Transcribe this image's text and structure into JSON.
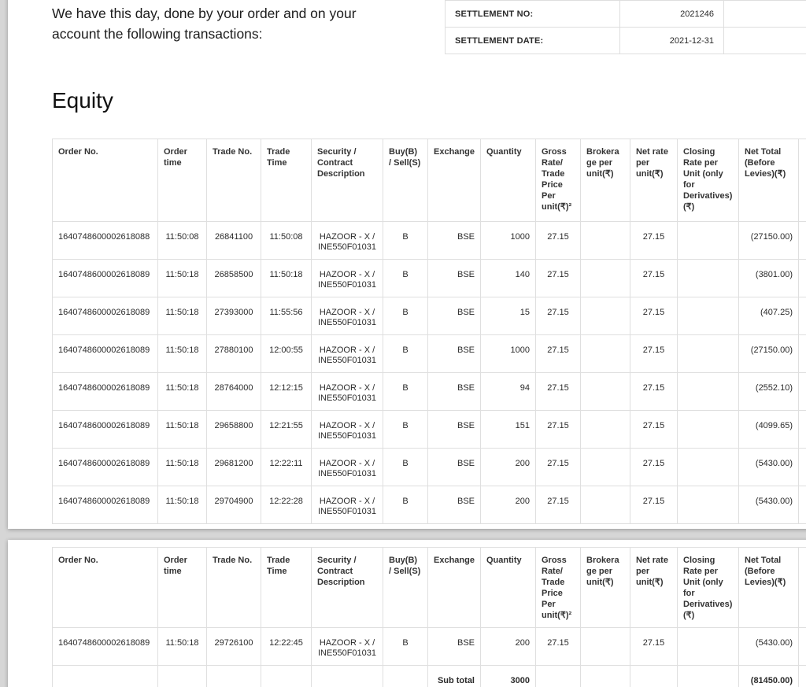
{
  "intro_text": "We have this day, done by your order and on your account the following transactions:",
  "section_title": "Equity",
  "settlement": {
    "rows": [
      {
        "label": "SETTLEMENT NO:",
        "value": "2021246"
      },
      {
        "label": "SETTLEMENT DATE:",
        "value": "2021-12-31"
      }
    ]
  },
  "transactions": {
    "headers": [
      "Order No.",
      "Order time",
      "Trade No.",
      "Trade Time",
      "Security / Contract Description",
      "Buy(B) / Sell(S)",
      "Exchange",
      "Quantity",
      "Gross Rate/ Trade Price Per unit(₹)²",
      "Brokerage per unit(₹)",
      "Net rate per unit(₹)",
      "Closing Rate per Unit (only for Derivatives) (₹)",
      "Net Total (Before Levies)(₹)"
    ],
    "page1_rows": [
      [
        "1640748600002618088",
        "11:50:08",
        "26841100",
        "11:50:08",
        "HAZOOR - X /\nINE550F01031",
        "B",
        "BSE",
        "1000",
        "27.15",
        "",
        "27.15",
        "",
        "(27150.00)"
      ],
      [
        "1640748600002618089",
        "11:50:18",
        "26858500",
        "11:50:18",
        "HAZOOR - X /\nINE550F01031",
        "B",
        "BSE",
        "140",
        "27.15",
        "",
        "27.15",
        "",
        "(3801.00)"
      ],
      [
        "1640748600002618089",
        "11:50:18",
        "27393000",
        "11:55:56",
        "HAZOOR - X /\nINE550F01031",
        "B",
        "BSE",
        "15",
        "27.15",
        "",
        "27.15",
        "",
        "(407.25)"
      ],
      [
        "1640748600002618089",
        "11:50:18",
        "27880100",
        "12:00:55",
        "HAZOOR - X /\nINE550F01031",
        "B",
        "BSE",
        "1000",
        "27.15",
        "",
        "27.15",
        "",
        "(27150.00)"
      ],
      [
        "1640748600002618089",
        "11:50:18",
        "28764000",
        "12:12:15",
        "HAZOOR - X /\nINE550F01031",
        "B",
        "BSE",
        "94",
        "27.15",
        "",
        "27.15",
        "",
        "(2552.10)"
      ],
      [
        "1640748600002618089",
        "11:50:18",
        "29658800",
        "12:21:55",
        "HAZOOR - X /\nINE550F01031",
        "B",
        "BSE",
        "151",
        "27.15",
        "",
        "27.15",
        "",
        "(4099.65)"
      ],
      [
        "1640748600002618089",
        "11:50:18",
        "29681200",
        "12:22:11",
        "HAZOOR - X /\nINE550F01031",
        "B",
        "BSE",
        "200",
        "27.15",
        "",
        "27.15",
        "",
        "(5430.00)"
      ],
      [
        "1640748600002618089",
        "11:50:18",
        "29704900",
        "12:22:28",
        "HAZOOR - X /\nINE550F01031",
        "B",
        "BSE",
        "200",
        "27.15",
        "",
        "27.15",
        "",
        "(5430.00)"
      ]
    ],
    "page2_rows": [
      [
        "1640748600002618089",
        "11:50:18",
        "29726100",
        "12:22:45",
        "HAZOOR - X /\nINE550F01031",
        "B",
        "BSE",
        "200",
        "27.15",
        "",
        "27.15",
        "",
        "(5430.00)"
      ]
    ],
    "subtotal": {
      "label": "Sub total",
      "quantity": "3000",
      "net_total": "(81450.00)"
    }
  }
}
